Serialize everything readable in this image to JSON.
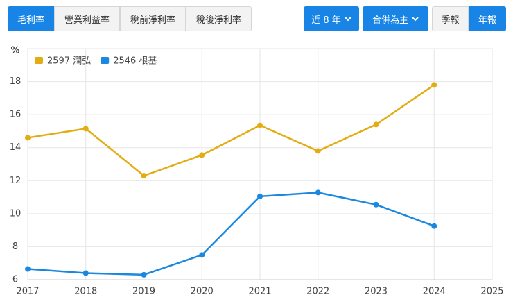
{
  "tabs": [
    "毛利率",
    "營業利益率",
    "稅前淨利率",
    "稅後淨利率"
  ],
  "filters": {
    "range": "近 8 年",
    "consolidation": "合併為主",
    "periods": [
      "季報",
      "年報"
    ]
  },
  "chart_data": {
    "type": "line",
    "y_label": "%",
    "x": [
      2017,
      2018,
      2019,
      2020,
      2021,
      2022,
      2023,
      2024
    ],
    "xlim": [
      2017,
      2025
    ],
    "xticks": [
      2017,
      2018,
      2019,
      2020,
      2021,
      2022,
      2023,
      2024,
      2025
    ],
    "ylim": [
      6,
      20
    ],
    "yticks": [
      6,
      8,
      10,
      12,
      14,
      16,
      18
    ],
    "grid": true,
    "legend": "top-left",
    "series": [
      {
        "name": "2597 潤弘",
        "color": "#e3ac12",
        "values": [
          14.6,
          15.15,
          12.3,
          13.55,
          15.35,
          13.8,
          15.4,
          17.8
        ]
      },
      {
        "name": "2546 根基",
        "color": "#1a88e0",
        "values": [
          6.65,
          6.4,
          6.3,
          7.5,
          11.05,
          11.28,
          10.55,
          9.25
        ]
      }
    ]
  }
}
